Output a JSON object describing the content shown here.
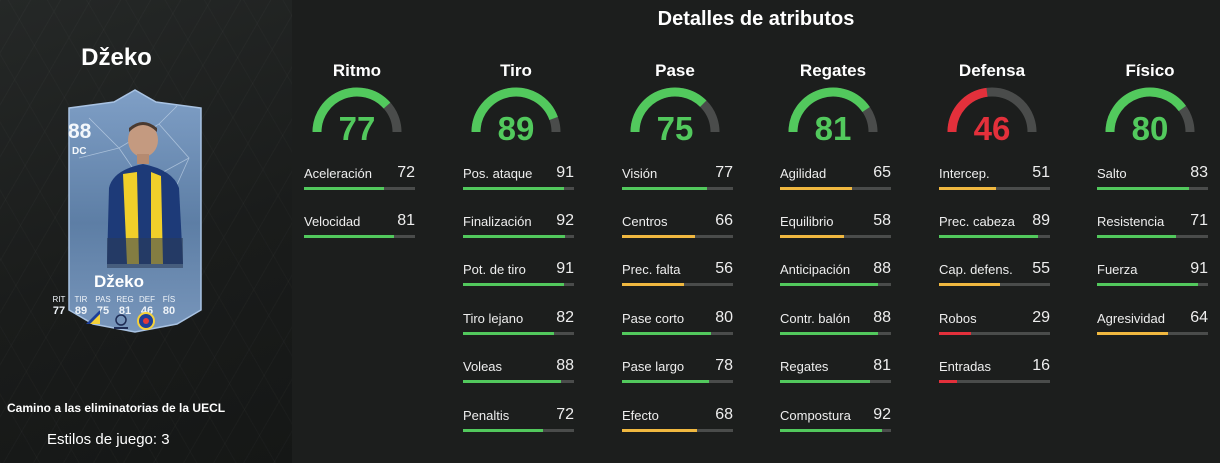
{
  "player": {
    "name": "Džeko",
    "card_name": "Džeko",
    "rating": "88",
    "position": "DC",
    "mini_stats": [
      {
        "label": "RIT",
        "value": "77"
      },
      {
        "label": "TIR",
        "value": "89"
      },
      {
        "label": "PAS",
        "value": "75"
      },
      {
        "label": "REG",
        "value": "81"
      },
      {
        "label": "DEF",
        "value": "46"
      },
      {
        "label": "FÍS",
        "value": "80"
      }
    ],
    "subtitle": "Camino a las eliminatorias de la UECL",
    "playstyles": "Estilos de juego: 3"
  },
  "title": "Detalles de atributos",
  "colors": {
    "green": "#52c95d",
    "yellow": "#f0b840",
    "red": "#e3303b",
    "track": "#4a4c4b",
    "card_blue": "#5d7ea5"
  },
  "categories": [
    {
      "name": "Ritmo",
      "value": 77,
      "stats": [
        {
          "label": "Aceleración",
          "value": 72
        },
        {
          "label": "Velocidad",
          "value": 81
        }
      ]
    },
    {
      "name": "Tiro",
      "value": 89,
      "stats": [
        {
          "label": "Pos. ataque",
          "value": 91
        },
        {
          "label": "Finalización",
          "value": 92
        },
        {
          "label": "Pot. de tiro",
          "value": 91
        },
        {
          "label": "Tiro lejano",
          "value": 82
        },
        {
          "label": "Voleas",
          "value": 88
        },
        {
          "label": "Penaltis",
          "value": 72
        }
      ]
    },
    {
      "name": "Pase",
      "value": 75,
      "stats": [
        {
          "label": "Visión",
          "value": 77
        },
        {
          "label": "Centros",
          "value": 66
        },
        {
          "label": "Prec. falta",
          "value": 56
        },
        {
          "label": "Pase corto",
          "value": 80
        },
        {
          "label": "Pase largo",
          "value": 78
        },
        {
          "label": "Efecto",
          "value": 68
        }
      ]
    },
    {
      "name": "Regates",
      "value": 81,
      "stats": [
        {
          "label": "Agilidad",
          "value": 65
        },
        {
          "label": "Equilibrio",
          "value": 58
        },
        {
          "label": "Anticipación",
          "value": 88
        },
        {
          "label": "Contr. balón",
          "value": 88
        },
        {
          "label": "Regates",
          "value": 81
        },
        {
          "label": "Compostura",
          "value": 92
        }
      ]
    },
    {
      "name": "Defensa",
      "value": 46,
      "stats": [
        {
          "label": "Intercep.",
          "value": 51
        },
        {
          "label": "Prec. cabeza",
          "value": 89
        },
        {
          "label": "Cap. defens.",
          "value": 55
        },
        {
          "label": "Robos",
          "value": 29
        },
        {
          "label": "Entradas",
          "value": 16
        }
      ]
    },
    {
      "name": "Físico",
      "value": 80,
      "stats": [
        {
          "label": "Salto",
          "value": 83
        },
        {
          "label": "Resistencia",
          "value": 71
        },
        {
          "label": "Fuerza",
          "value": 91
        },
        {
          "label": "Agresividad",
          "value": 64
        }
      ]
    }
  ]
}
